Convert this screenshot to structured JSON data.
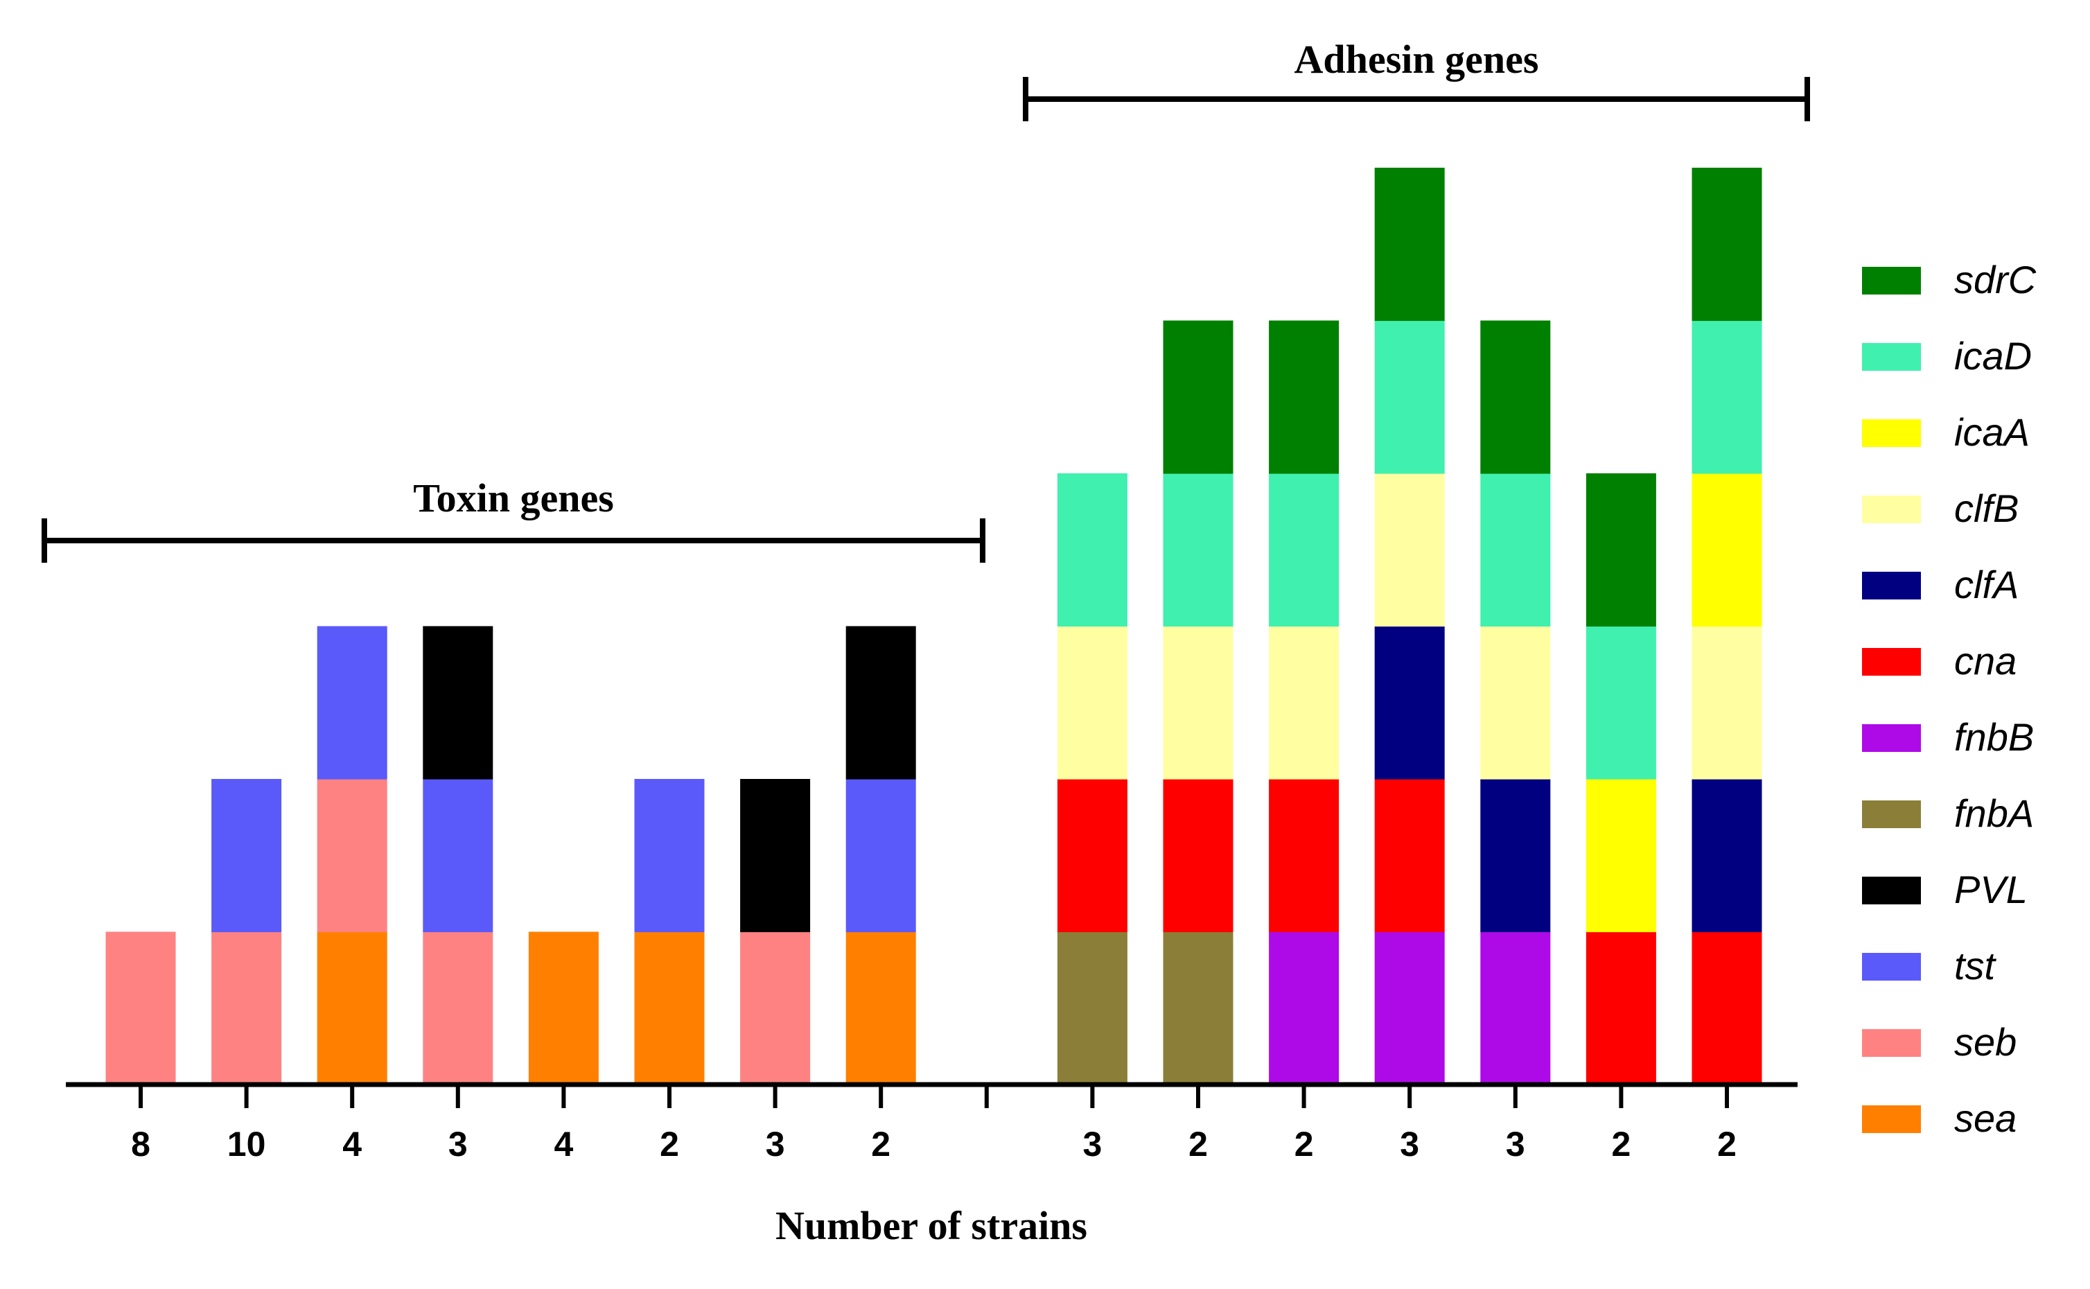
{
  "chart_data": {
    "type": "bar",
    "stacked": true,
    "xlabel": "Number of strains",
    "ylabel": "",
    "ylim": [
      0,
      6
    ],
    "grid": false,
    "legend_position": "right",
    "groups": [
      {
        "label": "Toxin genes",
        "categories": [
          "8",
          "10",
          "4",
          "3",
          "4",
          "2",
          "3",
          "2"
        ]
      },
      {
        "label": "Adhesin genes",
        "categories": [
          "3",
          "2",
          "2",
          "3",
          "3",
          "2",
          "2"
        ]
      }
    ],
    "categories": [
      "8",
      "10",
      "4",
      "3",
      "4",
      "2",
      "3",
      "2",
      "3",
      "2",
      "2",
      "3",
      "3",
      "2",
      "2"
    ],
    "genes": [
      {
        "name": "sdrC",
        "color": "#008000"
      },
      {
        "name": "icaD",
        "color": "#40F0AE"
      },
      {
        "name": "icaA",
        "color": "#FFFF00"
      },
      {
        "name": "clfB",
        "color": "#FFFFA2"
      },
      {
        "name": "clfA",
        "color": "#000080"
      },
      {
        "name": "cna",
        "color": "#FF0000"
      },
      {
        "name": "fnbB",
        "color": "#AE0AE8"
      },
      {
        "name": "fnbA",
        "color": "#8B7E38"
      },
      {
        "name": "PVL",
        "color": "#000000"
      },
      {
        "name": "tst",
        "color": "#5A5AFA"
      },
      {
        "name": "seb",
        "color": "#FF8282"
      },
      {
        "name": "sea",
        "color": "#FF8000"
      }
    ],
    "bars": [
      {
        "label": "8",
        "stack": [
          "seb"
        ]
      },
      {
        "label": "10",
        "stack": [
          "seb",
          "tst"
        ]
      },
      {
        "label": "4",
        "stack": [
          "sea",
          "seb",
          "tst"
        ]
      },
      {
        "label": "3",
        "stack": [
          "seb",
          "tst",
          "PVL"
        ]
      },
      {
        "label": "4",
        "stack": [
          "sea"
        ]
      },
      {
        "label": "2",
        "stack": [
          "sea",
          "tst"
        ]
      },
      {
        "label": "3",
        "stack": [
          "seb",
          "PVL"
        ]
      },
      {
        "label": "2",
        "stack": [
          "sea",
          "tst",
          "PVL"
        ]
      },
      {
        "label": "3",
        "stack": [
          "fnbA",
          "cna",
          "clfB",
          "icaD"
        ]
      },
      {
        "label": "2",
        "stack": [
          "fnbA",
          "cna",
          "clfB",
          "icaD",
          "sdrC"
        ]
      },
      {
        "label": "2",
        "stack": [
          "fnbB",
          "cna",
          "clfB",
          "icaD",
          "sdrC"
        ]
      },
      {
        "label": "3",
        "stack": [
          "fnbB",
          "cna",
          "clfA",
          "clfB",
          "icaD",
          "sdrC"
        ]
      },
      {
        "label": "3",
        "stack": [
          "fnbB",
          "clfA",
          "clfB",
          "icaD",
          "sdrC"
        ]
      },
      {
        "label": "2",
        "stack": [
          "cna",
          "icaA",
          "icaD",
          "sdrC"
        ]
      },
      {
        "label": "2",
        "stack": [
          "cna",
          "clfA",
          "clfB",
          "icaA",
          "icaD",
          "sdrC"
        ]
      }
    ]
  }
}
